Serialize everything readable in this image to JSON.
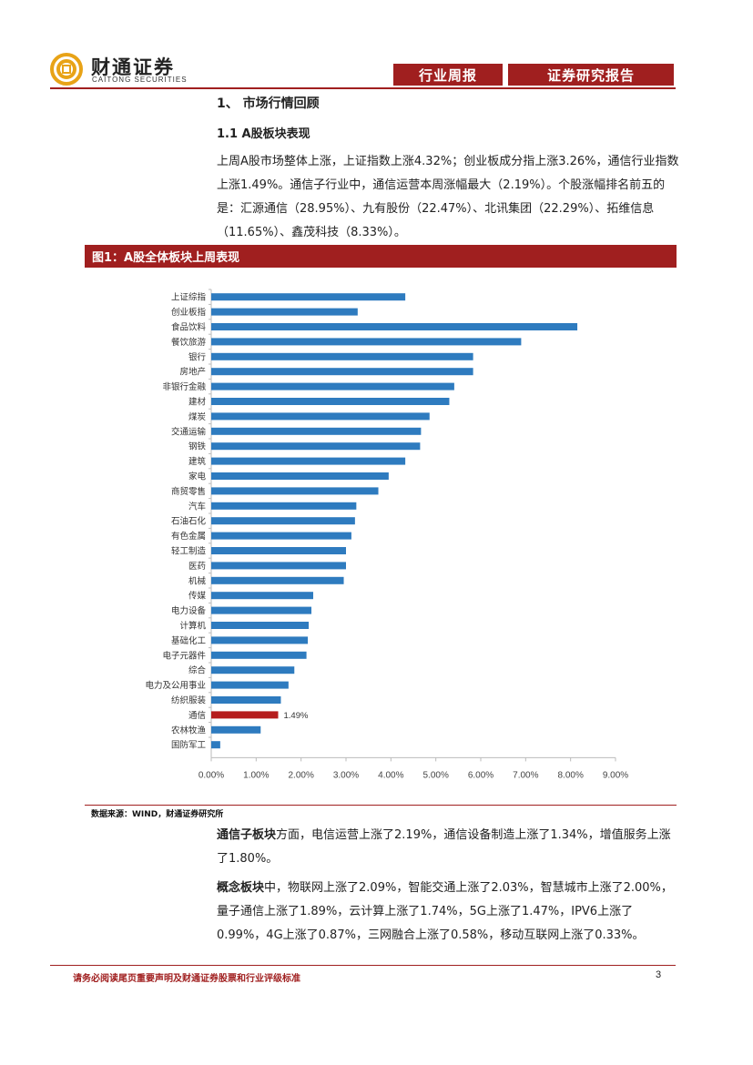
{
  "header": {
    "logo_cn": "财通证券",
    "logo_en": "CAITONG SECURITIES",
    "tag_left": "行业周报",
    "tag_right": "证券研究报告",
    "brand_color": "#a01f1f"
  },
  "section": {
    "title": "1、 市场行情回顾",
    "subtitle": "1.1 A股板块表现"
  },
  "para1": "上周A股市场整体上涨，上证指数上涨4.32%；创业板成分指上涨3.26%，通信行业指数上涨1.49%。通信子行业中，通信运营本周涨幅最大（2.19%）。个股涨幅排名前五的是：汇源通信（28.95%）、九有股份（22.47%）、北讯集团（22.29%）、拓维信息（11.65%）、鑫茂科技（8.33%）。",
  "figure": {
    "title": "图1：A股全体板块上周表现",
    "source": "数据来源：WIND，财通证券研究所"
  },
  "chart_data": {
    "type": "bar",
    "orientation": "horizontal",
    "categories": [
      "上证综指",
      "创业板指",
      "食品饮料",
      "餐饮旅游",
      "银行",
      "房地产",
      "非银行金融",
      "建材",
      "煤炭",
      "交通运输",
      "钢铁",
      "建筑",
      "家电",
      "商贸零售",
      "汽车",
      "石油石化",
      "有色金属",
      "轻工制造",
      "医药",
      "机械",
      "传媒",
      "电力设备",
      "计算机",
      "基础化工",
      "电子元器件",
      "综合",
      "电力及公用事业",
      "纺织服装",
      "通信",
      "农林牧渔",
      "国防军工"
    ],
    "values": [
      4.32,
      3.26,
      8.15,
      6.9,
      5.83,
      5.83,
      5.41,
      5.3,
      4.86,
      4.67,
      4.65,
      4.32,
      3.95,
      3.72,
      3.23,
      3.2,
      3.12,
      3.0,
      3.0,
      2.95,
      2.27,
      2.23,
      2.17,
      2.15,
      2.12,
      1.85,
      1.72,
      1.55,
      1.49,
      1.1,
      0.2
    ],
    "highlight_category": "通信",
    "highlight_label": "1.49%",
    "xlim": [
      0,
      9
    ],
    "xticks": [
      "0.00%",
      "1.00%",
      "2.00%",
      "3.00%",
      "4.00%",
      "5.00%",
      "6.00%",
      "7.00%",
      "8.00%",
      "9.00%"
    ],
    "bar_color": "#2e7bbf",
    "highlight_color": "#b51c1c",
    "grid": false
  },
  "para2": {
    "bold": "通信子板块",
    "text": "方面，电信运营上涨了2.19%，通信设备制造上涨了1.34%，增值服务上涨了1.80%。"
  },
  "para3": {
    "bold": "概念板块",
    "text": "中，物联网上涨了2.09%，智能交通上涨了2.03%，智慧城市上涨了2.00%，量子通信上涨了1.89%，云计算上涨了1.74%，5G上涨了1.47%，IPV6上涨了0.99%，4G上涨了0.87%，三网融合上涨了0.58%，移动互联网上涨了0.33%。"
  },
  "footer": {
    "disclaimer": "请务必阅读尾页重要声明及财通证券股票和行业评级标准",
    "page": "3"
  }
}
